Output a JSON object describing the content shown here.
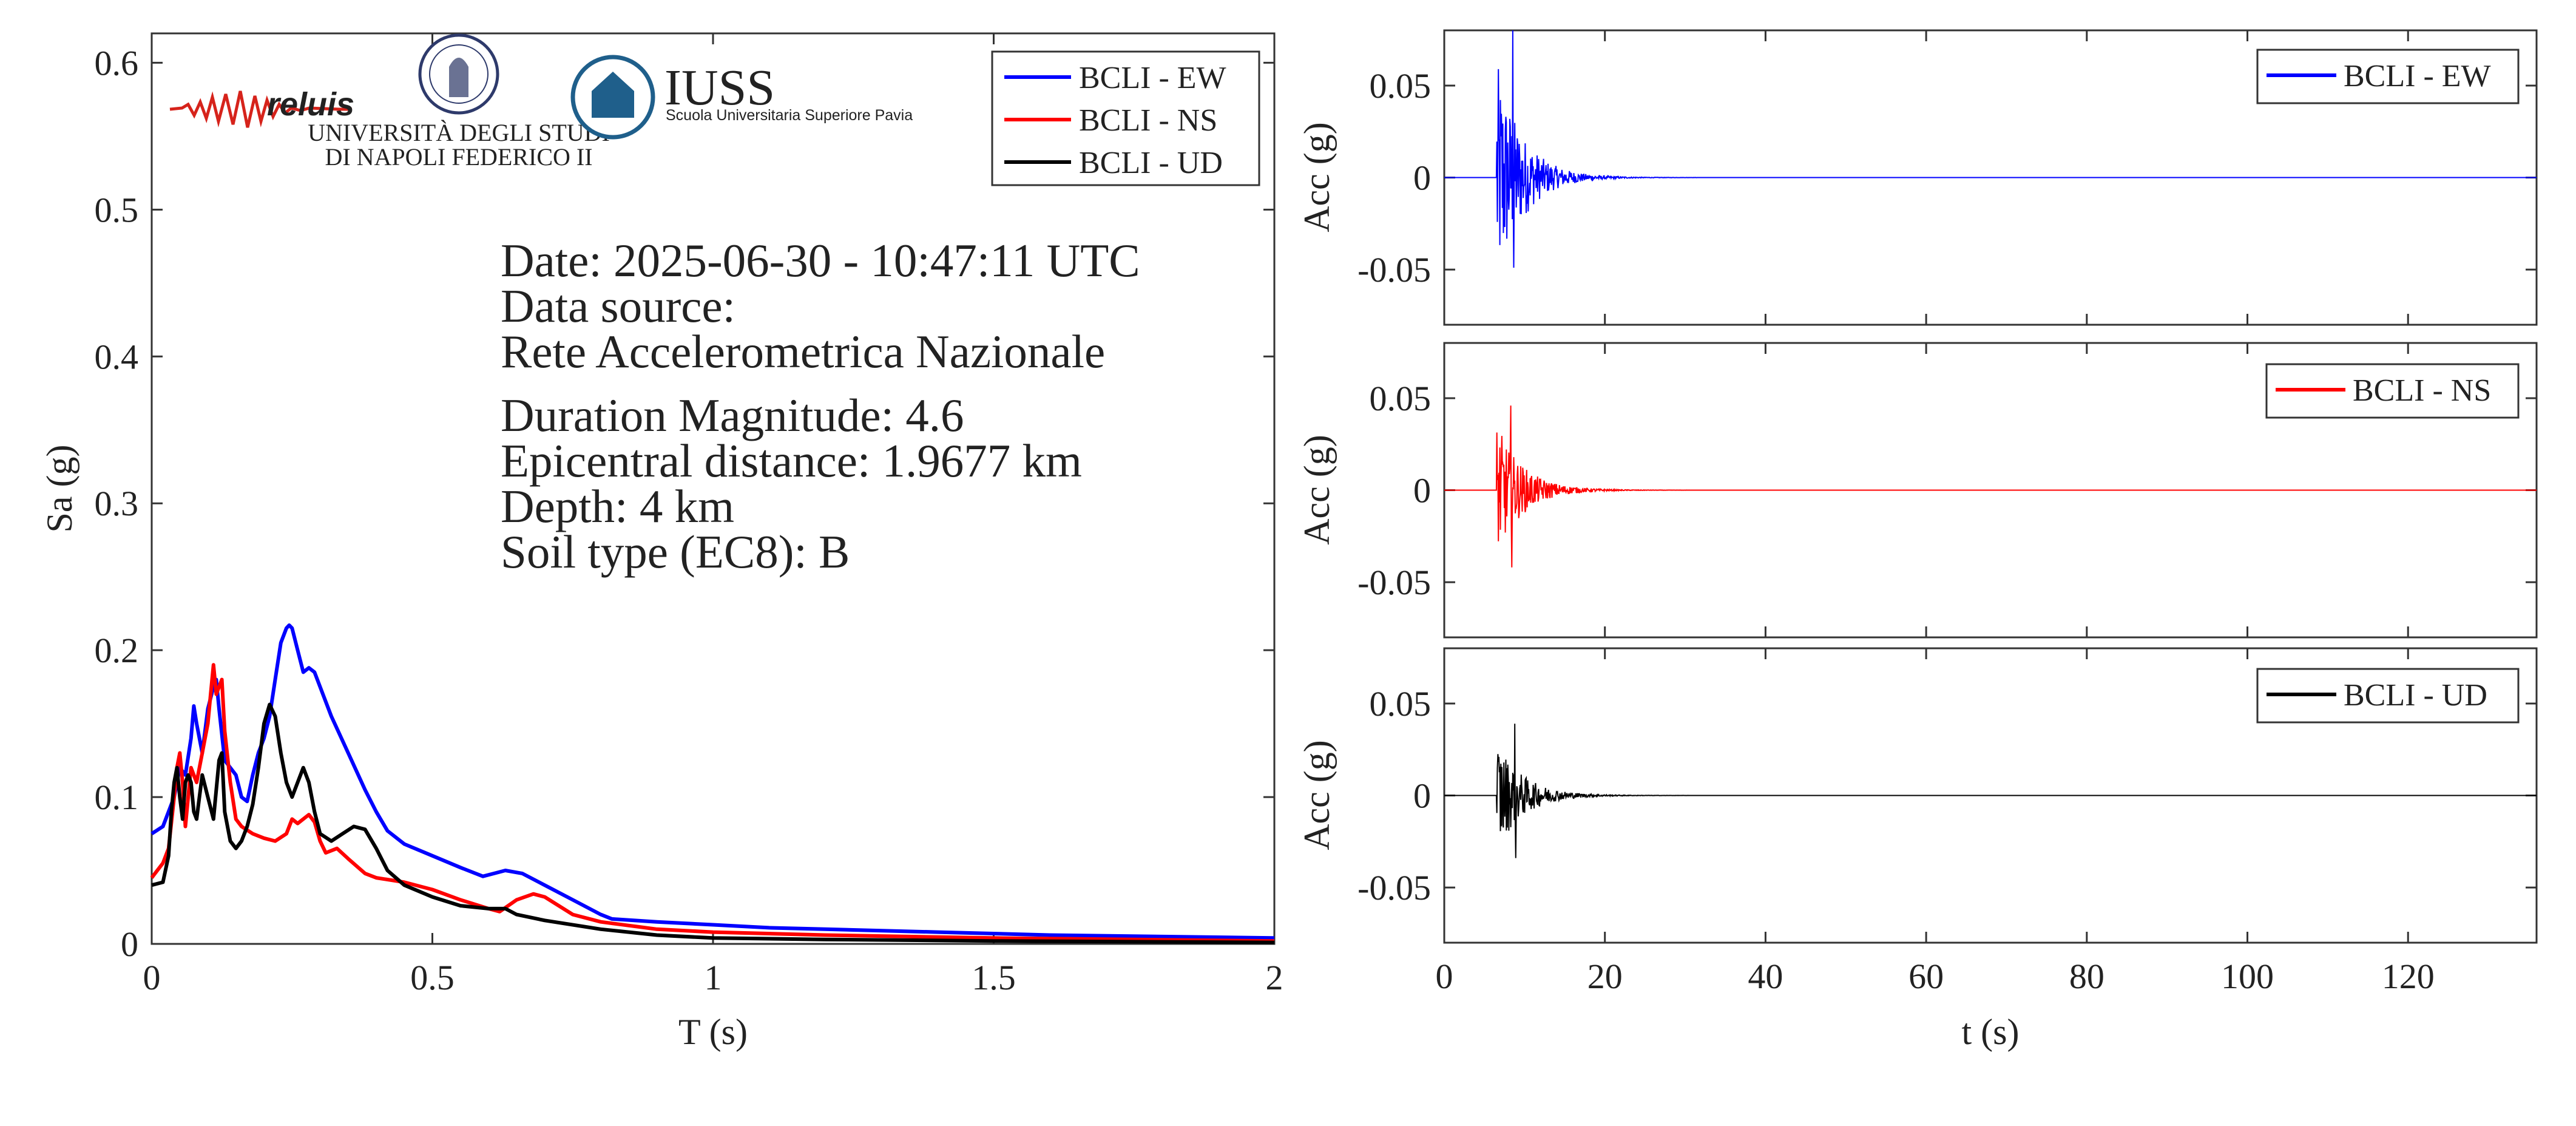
{
  "colors": {
    "EW": "#0000ff",
    "NS": "#ff0000",
    "UD": "#000000",
    "iuss": "#1f5f8b",
    "reluis": "#2a1a6e"
  },
  "logos": {
    "reluis": "reluis",
    "unina": [
      "UNIVERSITÀ DEGLI STUDI",
      "DI NAPOLI FEDERICO II"
    ],
    "iuss": {
      "name": "IUSS",
      "subtitle": "Scuola Universitaria Superiore Pavia"
    }
  },
  "info": {
    "date": "Date: 2025-06-30 - 10:47:11 UTC",
    "source_label": "Data source:",
    "source": "Rete Accelerometrica Nazionale",
    "magnitude": "Duration Magnitude: 4.6",
    "distance": "Epicentral distance: 1.9677 km",
    "depth": "Depth: 4 km",
    "soil": "Soil type (EC8): B"
  },
  "chart_data": [
    {
      "type": "line",
      "xlabel": "T (s)",
      "ylabel": "Sa (g)",
      "xlim": [
        0,
        2
      ],
      "ylim": [
        0,
        0.62
      ],
      "xticks": [
        "0",
        "0.5",
        "1",
        "1.5",
        "2"
      ],
      "yticks": [
        "0",
        "0.1",
        "0.2",
        "0.3",
        "0.4",
        "0.5",
        "0.6"
      ],
      "legend_position": "top-right",
      "series": [
        {
          "name": "BCLI - EW",
          "key": "EW",
          "x": [
            0,
            0.02,
            0.04,
            0.05,
            0.06,
            0.07,
            0.075,
            0.08,
            0.09,
            0.1,
            0.11,
            0.115,
            0.12,
            0.13,
            0.14,
            0.15,
            0.16,
            0.17,
            0.18,
            0.19,
            0.2,
            0.21,
            0.22,
            0.23,
            0.24,
            0.245,
            0.25,
            0.26,
            0.27,
            0.28,
            0.29,
            0.3,
            0.32,
            0.35,
            0.38,
            0.4,
            0.42,
            0.45,
            0.5,
            0.55,
            0.59,
            0.61,
            0.63,
            0.66,
            0.7,
            0.75,
            0.8,
            0.82,
            0.9,
            1.0,
            1.1,
            1.2,
            1.4,
            1.6,
            1.8,
            2.0
          ],
          "y": [
            0.075,
            0.08,
            0.1,
            0.12,
            0.115,
            0.14,
            0.162,
            0.15,
            0.13,
            0.16,
            0.175,
            0.18,
            0.16,
            0.125,
            0.12,
            0.115,
            0.1,
            0.097,
            0.115,
            0.13,
            0.14,
            0.155,
            0.18,
            0.205,
            0.215,
            0.217,
            0.215,
            0.2,
            0.185,
            0.188,
            0.185,
            0.175,
            0.155,
            0.13,
            0.105,
            0.09,
            0.077,
            0.068,
            0.06,
            0.052,
            0.046,
            0.048,
            0.05,
            0.048,
            0.04,
            0.03,
            0.02,
            0.017,
            0.015,
            0.013,
            0.011,
            0.01,
            0.008,
            0.006,
            0.005,
            0.004
          ]
        },
        {
          "name": "BCLI - NS",
          "key": "NS",
          "x": [
            0,
            0.02,
            0.03,
            0.04,
            0.045,
            0.05,
            0.055,
            0.06,
            0.065,
            0.07,
            0.08,
            0.09,
            0.1,
            0.105,
            0.11,
            0.115,
            0.12,
            0.125,
            0.13,
            0.14,
            0.15,
            0.16,
            0.18,
            0.2,
            0.22,
            0.24,
            0.25,
            0.26,
            0.28,
            0.29,
            0.3,
            0.31,
            0.33,
            0.35,
            0.38,
            0.4,
            0.45,
            0.5,
            0.55,
            0.6,
            0.62,
            0.65,
            0.68,
            0.7,
            0.75,
            0.8,
            0.9,
            1.0,
            1.2,
            1.5,
            2.0
          ],
          "y": [
            0.045,
            0.055,
            0.065,
            0.1,
            0.12,
            0.13,
            0.11,
            0.08,
            0.1,
            0.12,
            0.11,
            0.13,
            0.15,
            0.17,
            0.19,
            0.17,
            0.175,
            0.18,
            0.145,
            0.11,
            0.085,
            0.08,
            0.075,
            0.072,
            0.07,
            0.075,
            0.085,
            0.082,
            0.088,
            0.083,
            0.07,
            0.062,
            0.065,
            0.058,
            0.048,
            0.045,
            0.042,
            0.037,
            0.03,
            0.024,
            0.022,
            0.03,
            0.034,
            0.032,
            0.02,
            0.015,
            0.01,
            0.008,
            0.006,
            0.004,
            0.002
          ]
        },
        {
          "name": "BCLI - UD",
          "key": "UD",
          "x": [
            0,
            0.02,
            0.03,
            0.035,
            0.04,
            0.045,
            0.05,
            0.055,
            0.06,
            0.065,
            0.07,
            0.075,
            0.08,
            0.085,
            0.09,
            0.1,
            0.11,
            0.12,
            0.125,
            0.13,
            0.14,
            0.15,
            0.16,
            0.17,
            0.18,
            0.19,
            0.2,
            0.21,
            0.22,
            0.23,
            0.24,
            0.25,
            0.26,
            0.27,
            0.28,
            0.29,
            0.3,
            0.32,
            0.34,
            0.36,
            0.38,
            0.4,
            0.42,
            0.45,
            0.5,
            0.55,
            0.6,
            0.63,
            0.65,
            0.7,
            0.8,
            0.9,
            1.0,
            1.2,
            1.5,
            2.0
          ],
          "y": [
            0.04,
            0.042,
            0.06,
            0.09,
            0.11,
            0.12,
            0.1,
            0.085,
            0.11,
            0.115,
            0.11,
            0.09,
            0.085,
            0.1,
            0.115,
            0.1,
            0.085,
            0.125,
            0.13,
            0.09,
            0.07,
            0.065,
            0.07,
            0.08,
            0.095,
            0.12,
            0.15,
            0.163,
            0.155,
            0.13,
            0.11,
            0.1,
            0.11,
            0.12,
            0.11,
            0.09,
            0.075,
            0.07,
            0.075,
            0.08,
            0.078,
            0.065,
            0.05,
            0.04,
            0.032,
            0.026,
            0.024,
            0.024,
            0.02,
            0.016,
            0.01,
            0.006,
            0.004,
            0.003,
            0.002,
            0.001
          ]
        }
      ]
    },
    {
      "type": "line",
      "xlabel": "",
      "ylabel": "Acc (g)",
      "xlim": [
        0,
        136
      ],
      "ylim": [
        -0.08,
        0.08
      ],
      "yticks": [
        "0.05",
        "0",
        "-0.05"
      ],
      "legend_position": "top-right",
      "series": [
        {
          "name": "BCLI - EW",
          "key": "EW",
          "peak_pos": 0.08,
          "peak_neg": -0.049,
          "peak_time": 8.5,
          "onset": 6.5,
          "duration": 136
        }
      ]
    },
    {
      "type": "line",
      "xlabel": "",
      "ylabel": "Acc (g)",
      "xlim": [
        0,
        136
      ],
      "ylim": [
        -0.08,
        0.08
      ],
      "yticks": [
        "0.05",
        "0",
        "-0.05"
      ],
      "legend_position": "top-right",
      "series": [
        {
          "name": "BCLI - NS",
          "key": "NS",
          "peak_pos": 0.046,
          "peak_neg": -0.042,
          "peak_time": 8.3,
          "onset": 6.5,
          "duration": 136
        }
      ]
    },
    {
      "type": "line",
      "xlabel": "t (s)",
      "ylabel": "Acc (g)",
      "xlim": [
        0,
        136
      ],
      "ylim": [
        -0.08,
        0.08
      ],
      "xticks": [
        "0",
        "20",
        "40",
        "60",
        "80",
        "100",
        "120"
      ],
      "yticks": [
        "0.05",
        "0",
        "-0.05"
      ],
      "legend_position": "top-right",
      "series": [
        {
          "name": "BCLI - UD",
          "key": "UD",
          "peak_pos": 0.039,
          "peak_neg": -0.034,
          "peak_time": 8.8,
          "onset": 6.5,
          "duration": 136
        }
      ]
    }
  ]
}
